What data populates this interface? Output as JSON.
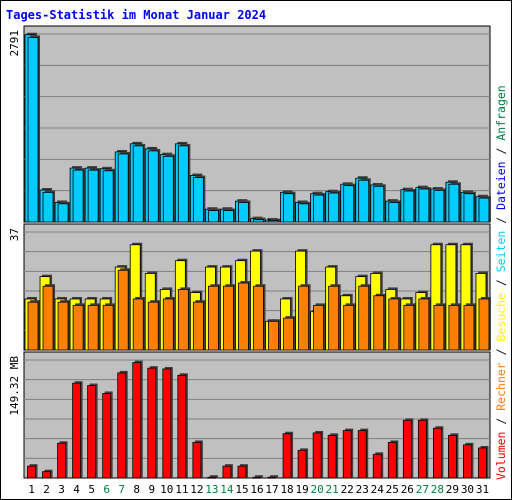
{
  "chart_data": {
    "type": "bar",
    "title": "Tages-Statistik im Monat Januar 2024",
    "categories": [
      "1",
      "2",
      "3",
      "4",
      "5",
      "6",
      "7",
      "8",
      "9",
      "10",
      "11",
      "12",
      "13",
      "14",
      "15",
      "16",
      "17",
      "18",
      "19",
      "20",
      "21",
      "22",
      "23",
      "24",
      "25",
      "26",
      "27",
      "28",
      "29",
      "30",
      "31"
    ],
    "weekend_days": [
      "6",
      "7",
      "13",
      "14",
      "20",
      "21",
      "27",
      "28"
    ],
    "grid": true,
    "colors": {
      "background": "#c0c0c0",
      "title": "#0000ff",
      "weekday_label": "#000000",
      "weekend_label": "#008040",
      "anfragen": "#00ccff",
      "dateien": "#0000ff",
      "seiten": "#00ccff",
      "besuche": "#ffff00",
      "rechner": "#ff8000",
      "volumen": "#ff0000"
    },
    "panels": [
      {
        "ymax_label": "2791",
        "ymax": 2791,
        "series": [
          {
            "name": "Anfragen",
            "values": [
              2780,
              475,
              290,
              800,
              800,
              790,
              1040,
              1160,
              1085,
              1000,
              1160,
              690,
              190,
              190,
              310,
              50,
              30,
              440,
              290,
              420,
              450,
              560,
              650,
              550,
              310,
              480,
              510,
              490,
              590,
              440,
              375
            ]
          },
          {
            "name": "Dateien",
            "values": [
              2740,
              440,
              270,
              770,
              770,
              760,
              1010,
              1130,
              1055,
              975,
              1130,
              660,
              170,
              170,
              290,
              35,
              20,
              420,
              270,
              400,
              430,
              540,
              620,
              530,
              290,
              460,
              490,
              470,
              560,
              420,
              355
            ]
          }
        ]
      },
      {
        "ymax_label": "37",
        "ymax": 37,
        "series": [
          {
            "name": "Seiten",
            "values": [
              16,
              23,
              16,
              16,
              16,
              16,
              26,
              31,
              24,
              19,
              28,
              18,
              26,
              26,
              28,
              31,
              9,
              16,
              31,
              12,
              26,
              17,
              23,
              24,
              19,
              16,
              18,
              30,
              30,
              29,
              24
            ]
          },
          {
            "name": "Besuche",
            "values": [
              16,
              23,
              16,
              16,
              16,
              16,
              26,
              33,
              24,
              19,
              28,
              18,
              26,
              26,
              28,
              31,
              9,
              16,
              31,
              12,
              26,
              17,
              23,
              24,
              19,
              16,
              18,
              33,
              33,
              33,
              24
            ]
          },
          {
            "name": "Rechner",
            "values": [
              15,
              20,
              15,
              14,
              14,
              14,
              25,
              16,
              15,
              16,
              19,
              15,
              20,
              20,
              21,
              20,
              9,
              10,
              20,
              14,
              20,
              14,
              20,
              17,
              16,
              14,
              16,
              14,
              14,
              14,
              16
            ]
          }
        ]
      },
      {
        "ymax_label": "149.32 MB",
        "ymax": 149.32,
        "series": [
          {
            "name": "Volumen",
            "values": [
              15,
              8,
              44,
              120,
              117,
              107,
              133,
              146,
              139,
              138,
              130,
              45,
              1,
              15,
              15,
              1,
              1,
              56,
              35,
              57,
              54,
              60,
              60,
              30,
              45,
              73,
              73,
              63,
              54,
              42,
              38
            ]
          }
        ]
      }
    ],
    "right_legend": [
      {
        "text": "Volumen",
        "color": "#ff0000"
      },
      {
        "text": " / ",
        "color": "#000000"
      },
      {
        "text": "Rechner",
        "color": "#ff8000"
      },
      {
        "text": " / ",
        "color": "#000000"
      },
      {
        "text": "Besuche",
        "color": "#ffff00"
      },
      {
        "text": " / ",
        "color": "#000000"
      },
      {
        "text": "Seiten",
        "color": "#00ccff"
      },
      {
        "text": " / ",
        "color": "#000000"
      },
      {
        "text": "Dateien",
        "color": "#0000ff"
      },
      {
        "text": " / ",
        "color": "#000000"
      },
      {
        "text": "Anfragen",
        "color": "#008040"
      }
    ]
  }
}
